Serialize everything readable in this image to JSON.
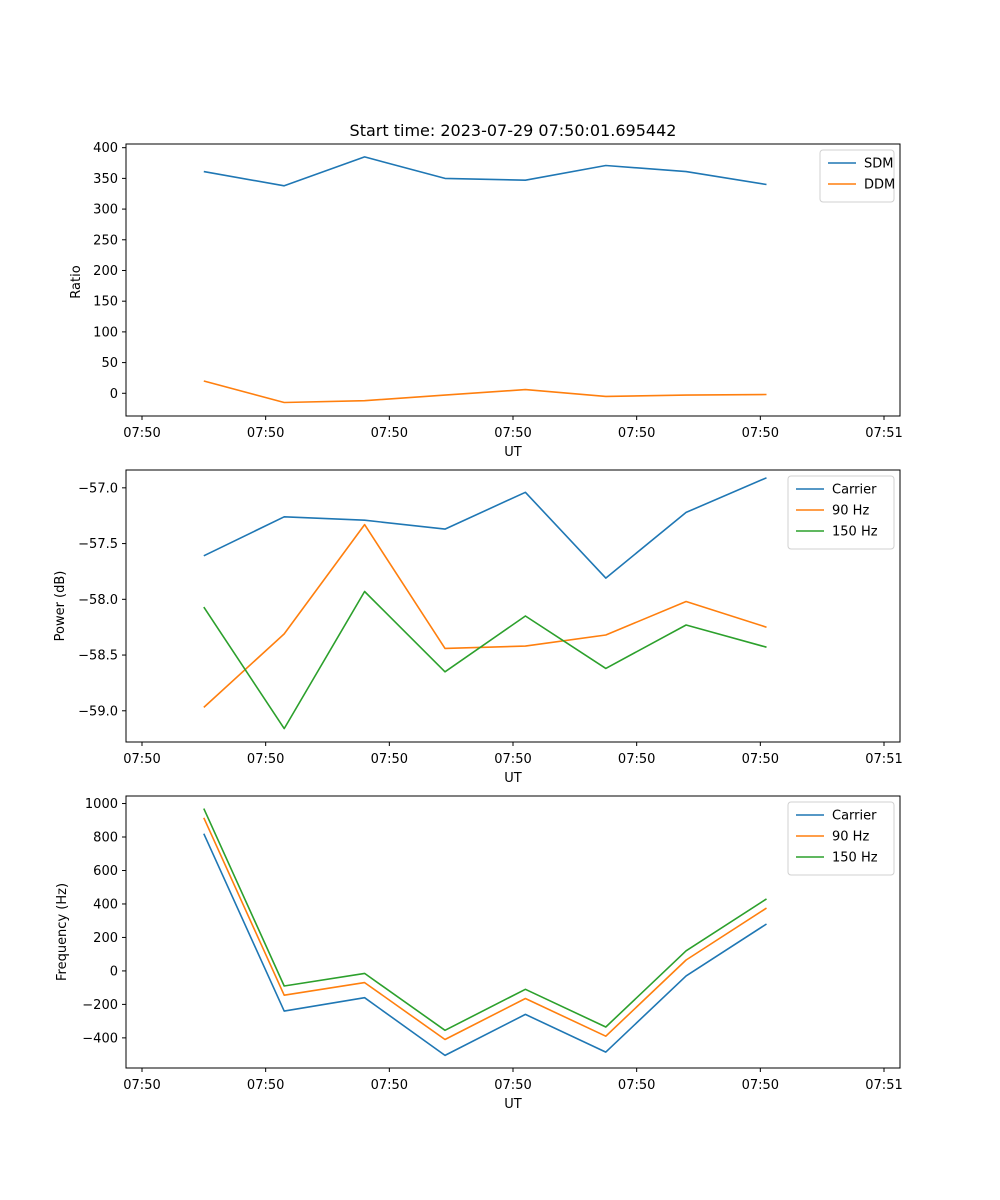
{
  "chart_data": [
    {
      "type": "line",
      "title": "Start time: 2023-07-29 07:50:01.695442",
      "xlabel": "UT",
      "ylabel": "Ratio",
      "x_tick_labels": [
        "07:50",
        "07:50",
        "07:50",
        "07:50",
        "07:50",
        "07:50",
        "07:51"
      ],
      "xlim": [
        0,
        6
      ],
      "x": [
        0.5,
        1.15,
        1.8,
        2.45,
        3.1,
        3.75,
        4.4,
        5.05
      ],
      "yticks": [
        0,
        50,
        100,
        150,
        200,
        250,
        300,
        350,
        400
      ],
      "ylim": [
        -37,
        406
      ],
      "legend": "top-right",
      "series": [
        {
          "name": "SDM",
          "color": "#1f77b4",
          "values": [
            361,
            338,
            385,
            350,
            347,
            371,
            361,
            340
          ]
        },
        {
          "name": "DDM",
          "color": "#ff7f0e",
          "values": [
            20,
            -15,
            -12,
            -3,
            6,
            -5,
            -3,
            -2
          ]
        }
      ]
    },
    {
      "type": "line",
      "title": "",
      "xlabel": "UT",
      "ylabel": "Power (dB)",
      "x_tick_labels": [
        "07:50",
        "07:50",
        "07:50",
        "07:50",
        "07:50",
        "07:50",
        "07:51"
      ],
      "xlim": [
        0,
        6
      ],
      "x": [
        0.5,
        1.15,
        1.8,
        2.45,
        3.1,
        3.75,
        4.4,
        5.05
      ],
      "yticks": [
        -59.0,
        -58.5,
        -58.0,
        -57.5,
        -57.0
      ],
      "ytick_labels": [
        "−59.0",
        "−58.5",
        "−58.0",
        "−57.5",
        "−57.0"
      ],
      "ylim": [
        -59.28,
        -56.84
      ],
      "legend": "top-right",
      "series": [
        {
          "name": "Carrier",
          "color": "#1f77b4",
          "values": [
            -57.61,
            -57.26,
            -57.29,
            -57.37,
            -57.04,
            -57.81,
            -57.22,
            -56.91
          ]
        },
        {
          "name": "90 Hz",
          "color": "#ff7f0e",
          "values": [
            -58.97,
            -58.31,
            -57.33,
            -58.44,
            -58.42,
            -58.32,
            -58.02,
            -58.25
          ]
        },
        {
          "name": "150 Hz",
          "color": "#2ca02c",
          "values": [
            -58.07,
            -59.16,
            -57.93,
            -58.65,
            -58.15,
            -58.62,
            -58.23,
            -58.43
          ]
        }
      ]
    },
    {
      "type": "line",
      "title": "",
      "xlabel": "UT",
      "ylabel": "Frequency (Hz)",
      "x_tick_labels": [
        "07:50",
        "07:50",
        "07:50",
        "07:50",
        "07:50",
        "07:50",
        "07:51"
      ],
      "xlim": [
        0,
        6
      ],
      "x": [
        0.5,
        1.15,
        1.8,
        2.45,
        3.1,
        3.75,
        4.4,
        5.05
      ],
      "yticks": [
        -400,
        -200,
        0,
        200,
        400,
        600,
        800,
        1000
      ],
      "ytick_labels": [
        "−400",
        "−200",
        "0",
        "200",
        "400",
        "600",
        "800",
        "1000"
      ],
      "ylim": [
        -580,
        1045
      ],
      "legend": "top-right",
      "series": [
        {
          "name": "Carrier",
          "color": "#1f77b4",
          "values": [
            820,
            -240,
            -160,
            -505,
            -260,
            -485,
            -30,
            280
          ]
        },
        {
          "name": "90 Hz",
          "color": "#ff7f0e",
          "values": [
            915,
            -145,
            -70,
            -410,
            -165,
            -390,
            65,
            375
          ]
        },
        {
          "name": "150 Hz",
          "color": "#2ca02c",
          "values": [
            970,
            -90,
            -15,
            -355,
            -110,
            -335,
            120,
            430
          ]
        }
      ]
    }
  ]
}
